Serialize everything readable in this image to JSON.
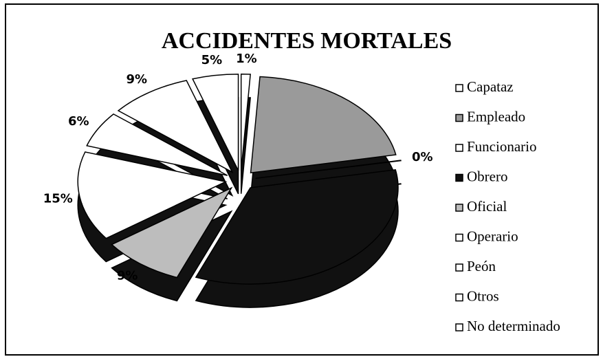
{
  "chart_data": {
    "type": "pie",
    "title": "ACCIDENTES MORTALES",
    "categories": [
      "Capataz",
      "Empleado",
      "Funcionario",
      "Obrero",
      "Oficial",
      "Operario",
      "Peón",
      "Otros",
      "No determinado"
    ],
    "values": [
      1,
      21,
      0,
      34,
      9,
      15,
      6,
      9,
      5
    ],
    "value_labels": [
      "1%",
      null,
      "0%",
      null,
      "9%",
      "15%",
      "6%",
      "9%",
      "5%"
    ],
    "colors": [
      "#ffffff",
      "#9a9a9a",
      "#ffffff",
      "#111111",
      "#bdbdbd",
      "#ffffff",
      "#ffffff",
      "#ffffff",
      "#ffffff"
    ]
  }
}
